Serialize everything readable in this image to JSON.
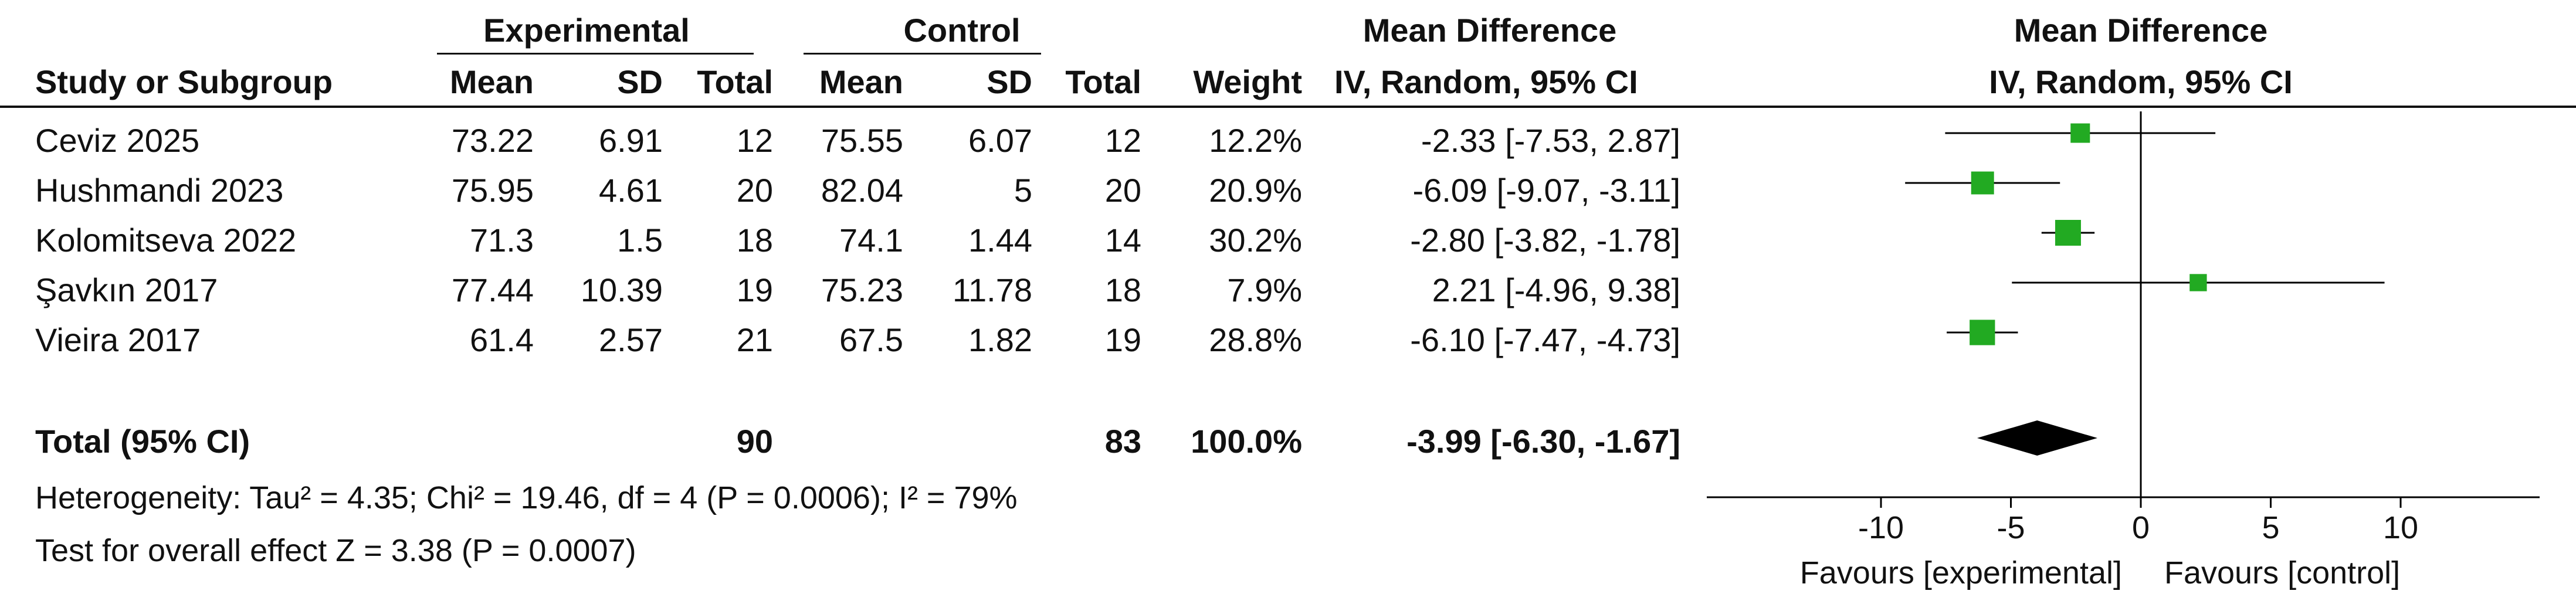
{
  "headers": {
    "experimental": "Experimental",
    "control": "Control",
    "mean_difference": "Mean Difference",
    "study_or_subgroup": "Study or Subgroup",
    "exp_mean": "Mean",
    "exp_sd": "SD",
    "exp_total": "Total",
    "ctl_mean": "Mean",
    "ctl_sd": "SD",
    "ctl_total": "Total",
    "weight": "Weight",
    "method": "IV, Random, 95% CI",
    "plot_title": "Mean Difference",
    "plot_method": "IV, Random, 95% CI"
  },
  "studies": [
    {
      "name": "Ceviz 2025",
      "exp_mean": "73.22",
      "exp_sd": "6.91",
      "exp_total": "12",
      "ctl_mean": "75.55",
      "ctl_sd": "6.07",
      "ctl_total": "12",
      "weight": "12.2%",
      "ci_text": "-2.33 [-7.53, 2.87]"
    },
    {
      "name": "Hushmandi 2023",
      "exp_mean": "75.95",
      "exp_sd": "4.61",
      "exp_total": "20",
      "ctl_mean": "82.04",
      "ctl_sd": "5",
      "ctl_total": "20",
      "weight": "20.9%",
      "ci_text": "-6.09 [-9.07, -3.11]"
    },
    {
      "name": "Kolomitseva 2022",
      "exp_mean": "71.3",
      "exp_sd": "1.5",
      "exp_total": "18",
      "ctl_mean": "74.1",
      "ctl_sd": "1.44",
      "ctl_total": "14",
      "weight": "30.2%",
      "ci_text": "-2.80 [-3.82, -1.78]"
    },
    {
      "name": "Şavkın 2017",
      "exp_mean": "77.44",
      "exp_sd": "10.39",
      "exp_total": "19",
      "ctl_mean": "75.23",
      "ctl_sd": "11.78",
      "ctl_total": "18",
      "weight": "7.9%",
      "ci_text": "2.21 [-4.96, 9.38]"
    },
    {
      "name": "Vieira 2017",
      "exp_mean": "61.4",
      "exp_sd": "2.57",
      "exp_total": "21",
      "ctl_mean": "67.5",
      "ctl_sd": "1.82",
      "ctl_total": "19",
      "weight": "28.8%",
      "ci_text": "-6.10 [-7.47, -4.73]"
    }
  ],
  "total": {
    "label": "Total (95% CI)",
    "exp_total": "90",
    "ctl_total": "83",
    "weight": "100.0%",
    "ci_text": "-3.99 [-6.30, -1.67]"
  },
  "heterogeneity": "Heterogeneity: Tau² = 4.35; Chi² = 19.46, df = 4 (P = 0.0006); I² = 79%",
  "overall_effect": "Test for overall effect  Z = 3.38 (P = 0.0007)",
  "axis": {
    "favours_left": "Favours [experimental]",
    "favours_right": "Favours [control]"
  },
  "colors": {
    "marker": "#22aa22",
    "diamond": "#000000",
    "line": "#000000"
  },
  "chart_data": {
    "type": "forest",
    "x_ticks": [
      -10,
      -5,
      0,
      5,
      10
    ],
    "xlim": [
      -16,
      16
    ],
    "studies": [
      {
        "name": "Ceviz 2025",
        "md": -2.33,
        "lo": -7.53,
        "hi": 2.87,
        "weight": 12.2
      },
      {
        "name": "Hushmandi 2023",
        "md": -6.09,
        "lo": -9.07,
        "hi": -3.11,
        "weight": 20.9
      },
      {
        "name": "Kolomitseva 2022",
        "md": -2.8,
        "lo": -3.82,
        "hi": -1.78,
        "weight": 30.2
      },
      {
        "name": "Şavkın 2017",
        "md": 2.21,
        "lo": -4.96,
        "hi": 9.38,
        "weight": 7.9
      },
      {
        "name": "Vieira 2017",
        "md": -6.1,
        "lo": -7.47,
        "hi": -4.73,
        "weight": 28.8
      }
    ],
    "pooled": {
      "md": -3.99,
      "lo": -6.3,
      "hi": -1.67
    }
  }
}
